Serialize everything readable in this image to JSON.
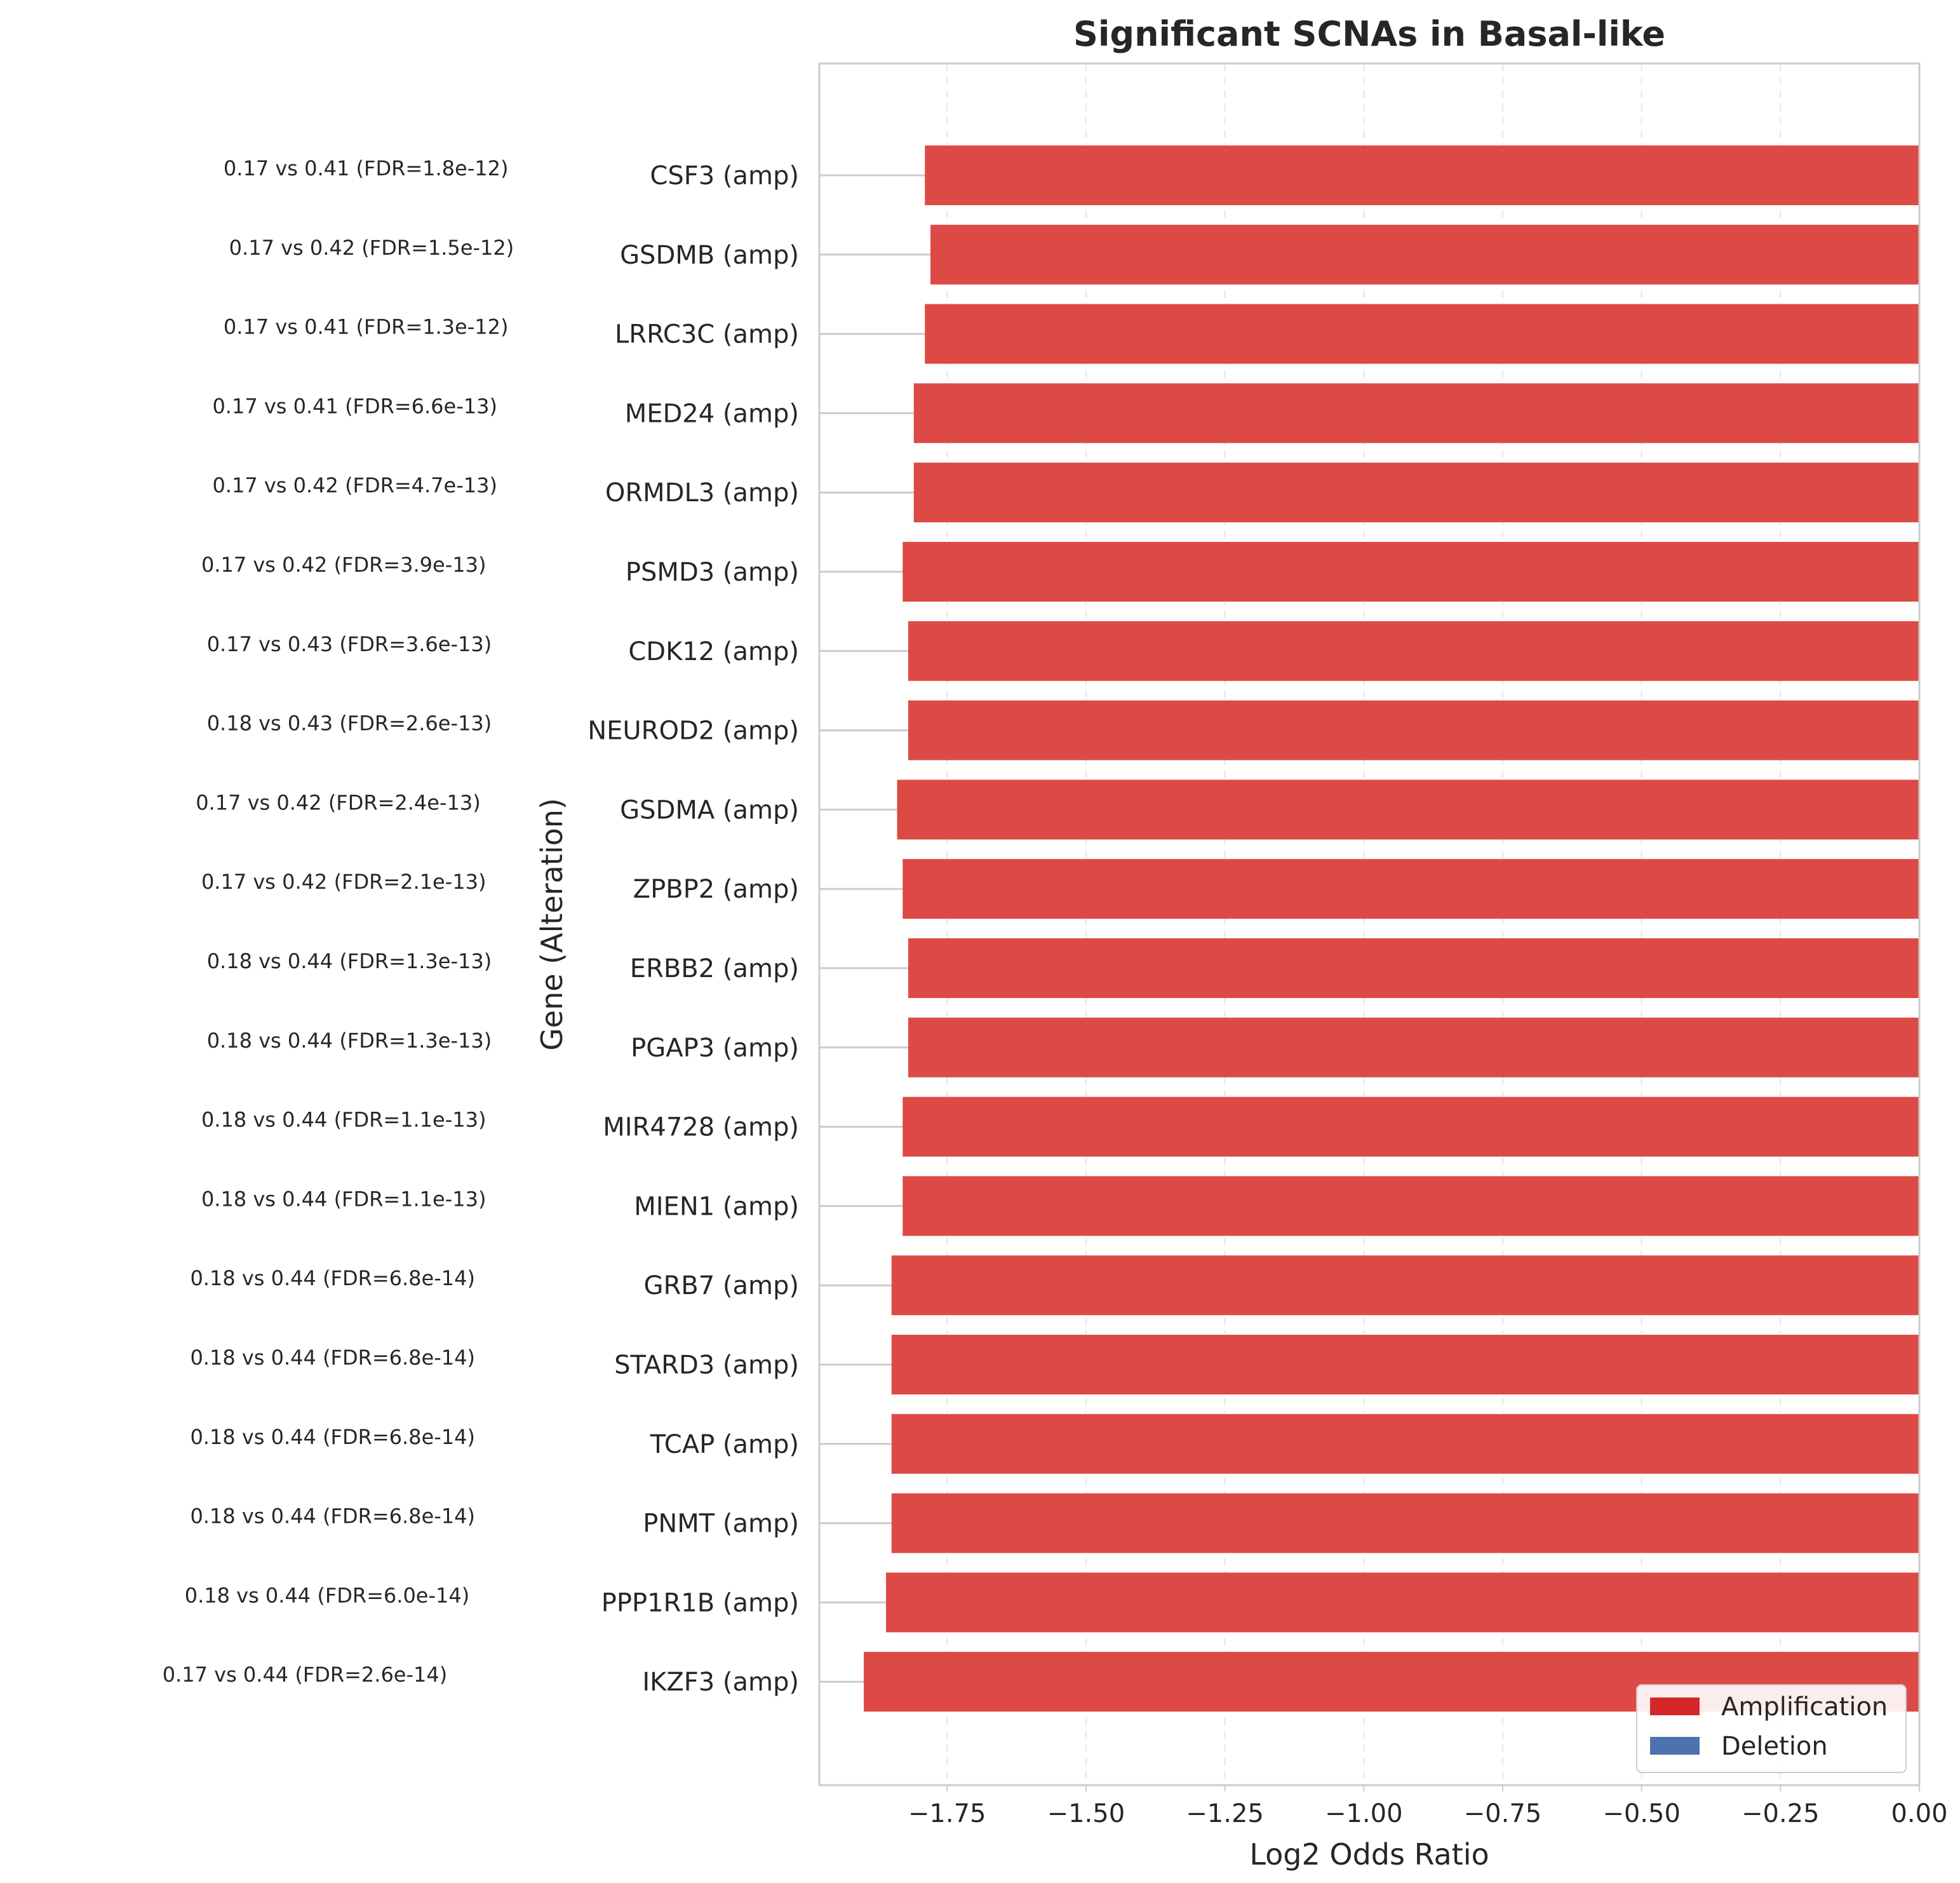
{
  "chart_data": {
    "type": "bar",
    "orientation": "horizontal",
    "title": "Significant SCNAs in Basal-like",
    "xlabel": "Log2 Odds Ratio",
    "ylabel": "Gene (Alteration)",
    "xlim": [
      -1.98,
      0.0
    ],
    "xticks": [
      -1.75,
      -1.5,
      -1.25,
      -1.0,
      -0.75,
      -0.5,
      -0.25,
      0.0
    ],
    "xtick_labels": [
      "−1.75",
      "−1.50",
      "−1.25",
      "−1.00",
      "−0.75",
      "−0.50",
      "−0.25",
      "0.00"
    ],
    "grid": true,
    "legend_position": "lower-right",
    "legend": [
      {
        "label": "Amplification",
        "color": "#d62728"
      },
      {
        "label": "Deletion",
        "color": "#4c72b0"
      }
    ],
    "bar_color": "#dd4a45",
    "categories": [
      "CSF3 (amp)",
      "GSDMB (amp)",
      "LRRC3C (amp)",
      "MED24 (amp)",
      "ORMDL3 (amp)",
      "PSMD3 (amp)",
      "CDK12 (amp)",
      "NEUROD2 (amp)",
      "GSDMA (amp)",
      "ZPBP2 (amp)",
      "ERBB2 (amp)",
      "PGAP3 (amp)",
      "MIR4728 (amp)",
      "MIEN1 (amp)",
      "GRB7 (amp)",
      "STARD3 (amp)",
      "TCAP (amp)",
      "PNMT (amp)",
      "PPP1R1B (amp)",
      "IKZF3 (amp)"
    ],
    "values": [
      -1.79,
      -1.78,
      -1.79,
      -1.81,
      -1.81,
      -1.83,
      -1.82,
      -1.82,
      -1.84,
      -1.83,
      -1.82,
      -1.82,
      -1.83,
      -1.83,
      -1.85,
      -1.85,
      -1.85,
      -1.85,
      -1.86,
      -1.9
    ],
    "annotations": [
      "0.17 vs 0.41 (FDR=1.8e-12)",
      "0.17 vs 0.42 (FDR=1.5e-12)",
      "0.17 vs 0.41 (FDR=1.3e-12)",
      "0.17 vs 0.41 (FDR=6.6e-13)",
      "0.17 vs 0.42 (FDR=4.7e-13)",
      "0.17 vs 0.42 (FDR=3.9e-13)",
      "0.17 vs 0.43 (FDR=3.6e-13)",
      "0.18 vs 0.43 (FDR=2.6e-13)",
      "0.17 vs 0.42 (FDR=2.4e-13)",
      "0.17 vs 0.42 (FDR=2.1e-13)",
      "0.18 vs 0.44 (FDR=1.3e-13)",
      "0.18 vs 0.44 (FDR=1.3e-13)",
      "0.18 vs 0.44 (FDR=1.1e-13)",
      "0.18 vs 0.44 (FDR=1.1e-13)",
      "0.18 vs 0.44 (FDR=6.8e-14)",
      "0.18 vs 0.44 (FDR=6.8e-14)",
      "0.18 vs 0.44 (FDR=6.8e-14)",
      "0.18 vs 0.44 (FDR=6.8e-14)",
      "0.18 vs 0.44 (FDR=6.0e-14)",
      "0.17 vs 0.44 (FDR=2.6e-14)"
    ]
  }
}
